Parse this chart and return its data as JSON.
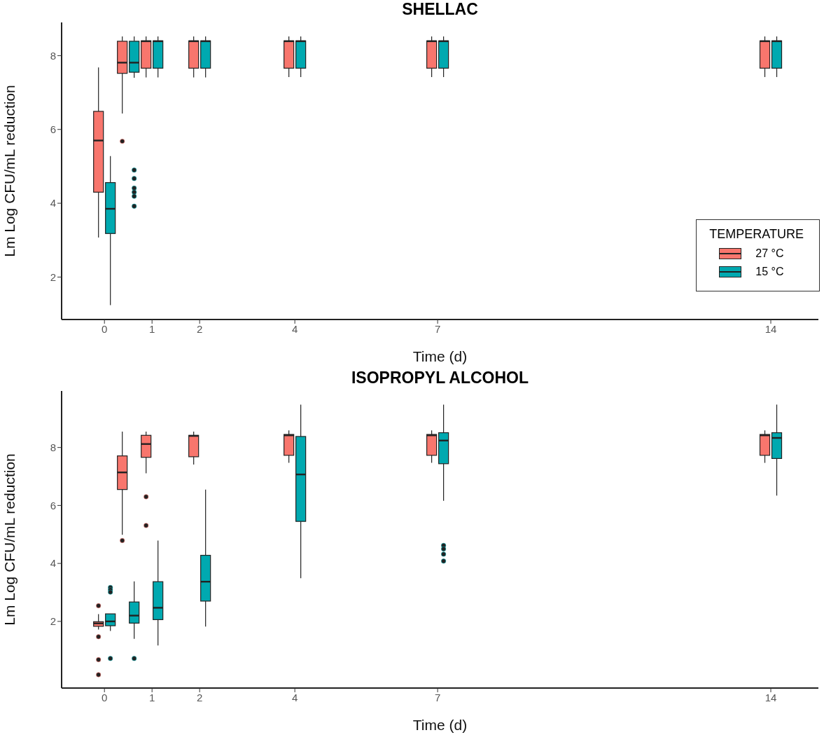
{
  "chart_data": [
    {
      "type": "box",
      "title": "SHELLAC",
      "xlabel": "Time (d)",
      "ylabel": "Lm Log CFU/mL reduction",
      "xlim": [
        -0.9,
        15
      ],
      "xticks": [
        0,
        1,
        2,
        4,
        7,
        14
      ],
      "ylim": [
        0.85,
        8.9
      ],
      "yticks": [
        2,
        4,
        6,
        8
      ],
      "legend": "bottom right",
      "legend_title": "TEMPERATURE",
      "series": [
        {
          "name": "27 °C",
          "color": "#f8766d",
          "x": [
            0,
            0.5,
            1,
            2,
            4,
            7,
            14
          ],
          "boxes": [
            {
              "low": 3.07,
              "q1": 4.3,
              "median": 5.7,
              "q3": 6.49,
              "high": 7.68
            },
            {
              "low": 6.43,
              "q1": 7.52,
              "median": 7.81,
              "q3": 8.39,
              "high": 8.52,
              "outliers": [
                5.68
              ]
            },
            {
              "low": 7.41,
              "q1": 7.66,
              "median": 8.39,
              "q3": 8.4,
              "high": 8.52
            },
            {
              "low": 7.41,
              "q1": 7.66,
              "median": 8.39,
              "q3": 8.4,
              "high": 8.52
            },
            {
              "low": 7.42,
              "q1": 7.66,
              "median": 8.39,
              "q3": 8.4,
              "high": 8.52
            },
            {
              "low": 7.42,
              "q1": 7.66,
              "median": 8.39,
              "q3": 8.4,
              "high": 8.52
            },
            {
              "low": 7.42,
              "q1": 7.66,
              "median": 8.39,
              "q3": 8.4,
              "high": 8.52
            }
          ]
        },
        {
          "name": "15 °C",
          "color": "#00a9b0",
          "x": [
            0,
            0.5,
            1,
            2,
            4,
            7,
            14
          ],
          "boxes": [
            {
              "low": 1.24,
              "q1": 3.18,
              "median": 3.85,
              "q3": 4.56,
              "high": 5.28
            },
            {
              "low": 7.4,
              "q1": 7.55,
              "median": 7.81,
              "q3": 8.39,
              "high": 8.52,
              "outliers": [
                4.9,
                4.67,
                4.41,
                4.3,
                4.19,
                3.92
              ]
            },
            {
              "low": 7.41,
              "q1": 7.66,
              "median": 8.39,
              "q3": 8.4,
              "high": 8.52
            },
            {
              "low": 7.41,
              "q1": 7.66,
              "median": 8.39,
              "q3": 8.4,
              "high": 8.52
            },
            {
              "low": 7.42,
              "q1": 7.66,
              "median": 8.39,
              "q3": 8.4,
              "high": 8.52
            },
            {
              "low": 7.42,
              "q1": 7.66,
              "median": 8.39,
              "q3": 8.4,
              "high": 8.52
            },
            {
              "low": 7.42,
              "q1": 7.66,
              "median": 8.39,
              "q3": 8.4,
              "high": 8.52
            }
          ]
        }
      ]
    },
    {
      "type": "box",
      "title": "ISOPROPYL ALCOHOL",
      "xlabel": "Time (d)",
      "ylabel": "Lm Log CFU/mL reduction",
      "xlim": [
        -0.9,
        15
      ],
      "xticks": [
        0,
        1,
        2,
        4,
        7,
        14
      ],
      "ylim": [
        -0.3,
        9.95
      ],
      "yticks": [
        2,
        4,
        6,
        8
      ],
      "series": [
        {
          "color": "#f8766d",
          "x": [
            0,
            0.5,
            1,
            2,
            4,
            7,
            14
          ],
          "boxes": [
            {
              "low": 1.72,
              "q1": 1.83,
              "median": 1.93,
              "q3": 1.99,
              "high": 2.25,
              "outliers": [
                2.54,
                1.47,
                0.68,
                0.16
              ]
            },
            {
              "low": 4.99,
              "q1": 6.55,
              "median": 7.14,
              "q3": 7.71,
              "high": 8.55,
              "outliers": [
                4.79
              ]
            },
            {
              "low": 7.11,
              "q1": 7.66,
              "median": 8.12,
              "q3": 8.42,
              "high": 8.55,
              "outliers": [
                6.3,
                5.31
              ]
            },
            {
              "low": 7.41,
              "q1": 7.68,
              "median": 8.4,
              "q3": 8.42,
              "high": 8.55
            },
            {
              "low": 7.47,
              "q1": 7.73,
              "median": 8.42,
              "q3": 8.45,
              "high": 8.59
            },
            {
              "low": 7.47,
              "q1": 7.73,
              "median": 8.42,
              "q3": 8.45,
              "high": 8.59
            },
            {
              "low": 7.47,
              "q1": 7.73,
              "median": 8.42,
              "q3": 8.45,
              "high": 8.59
            }
          ]
        },
        {
          "color": "#00a9b0",
          "x": [
            0,
            0.5,
            1,
            2,
            4,
            7,
            14
          ],
          "boxes": [
            {
              "low": 1.67,
              "q1": 1.85,
              "median": 2.0,
              "q3": 2.26,
              "high": 2.26,
              "outliers": [
                3.17,
                3.09,
                3.01,
                0.72
              ]
            },
            {
              "low": 1.4,
              "q1": 1.94,
              "median": 2.2,
              "q3": 2.67,
              "high": 3.38,
              "outliers": [
                0.72
              ]
            },
            {
              "low": 1.17,
              "q1": 2.06,
              "median": 2.47,
              "q3": 3.37,
              "high": 4.79
            },
            {
              "low": 1.82,
              "q1": 2.7,
              "median": 3.37,
              "q3": 4.28,
              "high": 6.55
            },
            {
              "low": 3.49,
              "q1": 5.45,
              "median": 7.07,
              "q3": 8.38,
              "high": 9.48
            },
            {
              "low": 6.16,
              "q1": 7.44,
              "median": 8.24,
              "q3": 8.51,
              "high": 9.48,
              "outliers": [
                4.62,
                4.5,
                4.32,
                4.08
              ]
            },
            {
              "low": 6.34,
              "q1": 7.62,
              "median": 8.33,
              "q3": 8.51,
              "high": 9.48
            }
          ]
        }
      ]
    }
  ]
}
